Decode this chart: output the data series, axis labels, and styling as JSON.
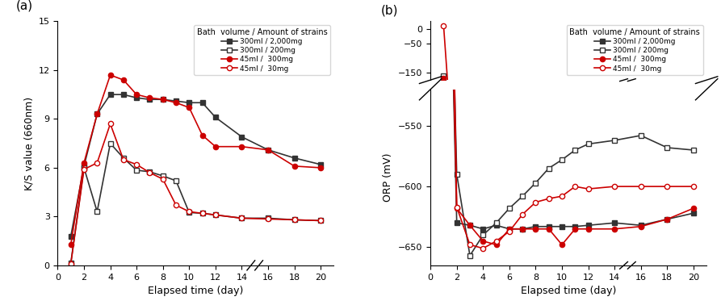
{
  "series_a": [
    {
      "label": "300ml / 2,000mg",
      "color": "#333333",
      "marker": "s",
      "filled": true,
      "x": [
        1,
        2,
        3,
        4,
        5,
        6,
        7,
        8,
        9,
        10,
        11,
        12,
        14,
        16,
        18,
        20
      ],
      "y": [
        1.8,
        6.1,
        9.3,
        10.5,
        10.5,
        10.3,
        10.2,
        10.2,
        10.1,
        10.0,
        10.0,
        9.1,
        7.9,
        7.1,
        6.6,
        6.2
      ]
    },
    {
      "label": "300ml / 200mg",
      "color": "#333333",
      "marker": "s",
      "filled": false,
      "x": [
        1,
        2,
        3,
        4,
        5,
        6,
        7,
        8,
        9,
        10,
        11,
        12,
        14,
        16,
        18,
        20
      ],
      "y": [
        0.15,
        6.0,
        3.3,
        7.5,
        6.6,
        5.85,
        5.75,
        5.5,
        5.2,
        3.25,
        3.2,
        3.1,
        2.9,
        2.9,
        2.8,
        2.75
      ]
    },
    {
      "label": "45ml /  300mg",
      "color": "#cc0000",
      "marker": "o",
      "filled": true,
      "x": [
        1,
        2,
        3,
        4,
        5,
        6,
        7,
        8,
        9,
        10,
        11,
        12,
        14,
        16,
        18,
        20
      ],
      "y": [
        1.3,
        6.3,
        9.3,
        11.7,
        11.4,
        10.5,
        10.3,
        10.2,
        10.0,
        9.7,
        8.0,
        7.3,
        7.3,
        7.1,
        6.1,
        6.0
      ]
    },
    {
      "label": "45ml /  30mg",
      "color": "#cc0000",
      "marker": "o",
      "filled": false,
      "x": [
        1,
        2,
        3,
        4,
        5,
        6,
        7,
        8,
        9,
        10,
        11,
        12,
        14,
        16,
        18,
        20
      ],
      "y": [
        0.1,
        5.9,
        6.3,
        8.7,
        6.5,
        6.2,
        5.7,
        5.3,
        3.7,
        3.3,
        3.2,
        3.1,
        2.9,
        2.85,
        2.8,
        2.75
      ]
    }
  ],
  "series_b": [
    {
      "label": "300ml / 2,000mg",
      "color": "#333333",
      "marker": "s",
      "filled": true,
      "x": [
        1,
        2,
        3,
        4,
        5,
        6,
        7,
        8,
        9,
        10,
        11,
        12,
        14,
        16,
        18,
        20
      ],
      "y": [
        -180,
        -630,
        -632,
        -635,
        -632,
        -635,
        -635,
        -633,
        -633,
        -633,
        -633,
        -632,
        -630,
        -632,
        -627,
        -622
      ]
    },
    {
      "label": "300ml / 200mg",
      "color": "#333333",
      "marker": "s",
      "filled": false,
      "x": [
        1,
        2,
        3,
        4,
        5,
        6,
        7,
        8,
        9,
        10,
        11,
        12,
        14,
        16,
        18,
        20
      ],
      "y": [
        -160,
        -590,
        -657,
        -640,
        -630,
        -618,
        -608,
        -597,
        -585,
        -578,
        -570,
        -565,
        -562,
        -558,
        -568,
        -570
      ]
    },
    {
      "label": "45ml /  300mg",
      "color": "#cc0000",
      "marker": "o",
      "filled": true,
      "x": [
        1,
        2,
        3,
        4,
        5,
        6,
        7,
        8,
        9,
        10,
        11,
        12,
        14,
        16,
        18,
        20
      ],
      "y": [
        -170,
        -618,
        -632,
        -645,
        -648,
        -635,
        -635,
        -635,
        -635,
        -648,
        -635,
        -635,
        -635,
        -633,
        -627,
        -618
      ]
    },
    {
      "label": "45ml /  30mg",
      "color": "#cc0000",
      "marker": "o",
      "filled": false,
      "x": [
        1,
        2,
        3,
        4,
        5,
        6,
        7,
        8,
        9,
        10,
        11,
        12,
        14,
        16,
        18,
        20
      ],
      "y": [
        10,
        -617,
        -648,
        -651,
        -645,
        -637,
        -623,
        -613,
        -610,
        -608,
        -600,
        -602,
        -600,
        -600,
        -600,
        -600
      ]
    }
  ],
  "legend_title": "Bath  volume / Amount of strains",
  "xlabel": "Elapsed time (day)",
  "ylabel_a": "K/S value (660nm)",
  "ylabel_b": "ORP (mV)",
  "panel_a_label": "(a)",
  "panel_b_label": "(b)",
  "linewidth": 1.2,
  "markersize": 4.5,
  "a_xticks": [
    0,
    2,
    4,
    6,
    8,
    10,
    12,
    14,
    16,
    18,
    20
  ],
  "b_xticks": [
    0,
    2,
    4,
    6,
    8,
    10,
    12,
    14,
    16,
    18,
    20
  ],
  "a_yticks": [
    0,
    3,
    6,
    9,
    12,
    15
  ],
  "b_upper_yticks": [
    0,
    -50,
    -150
  ],
  "b_lower_yticks": [
    -550,
    -600,
    -650
  ],
  "b_upper_ylim": [
    -175,
    25
  ],
  "b_lower_ylim": [
    -665,
    -520
  ],
  "a_xlim": [
    0,
    21
  ],
  "b_xlim": [
    0,
    21
  ]
}
